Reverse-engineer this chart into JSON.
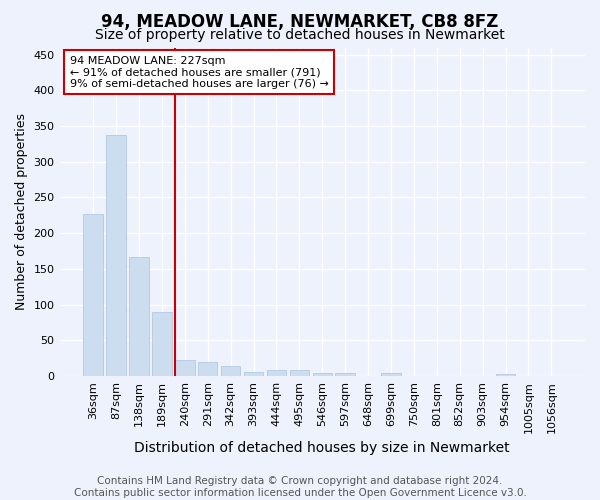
{
  "title1": "94, MEADOW LANE, NEWMARKET, CB8 8FZ",
  "title2": "Size of property relative to detached houses in Newmarket",
  "xlabel": "Distribution of detached houses by size in Newmarket",
  "ylabel": "Number of detached properties",
  "categories": [
    "36sqm",
    "87sqm",
    "138sqm",
    "189sqm",
    "240sqm",
    "291sqm",
    "342sqm",
    "393sqm",
    "444sqm",
    "495sqm",
    "546sqm",
    "597sqm",
    "648sqm",
    "699sqm",
    "750sqm",
    "801sqm",
    "852sqm",
    "903sqm",
    "954sqm",
    "1005sqm",
    "1056sqm"
  ],
  "values": [
    227,
    337,
    166,
    89,
    22,
    20,
    14,
    6,
    8,
    8,
    4,
    4,
    0,
    4,
    0,
    0,
    0,
    0,
    3,
    0,
    0
  ],
  "bar_color": "#ccddf0",
  "bar_edge_color": "#aac4e0",
  "vline_index": 4,
  "vline_color": "#cc0000",
  "annotation_line1": "94 MEADOW LANE: 227sqm",
  "annotation_line2": "← 91% of detached houses are smaller (791)",
  "annotation_line3": "9% of semi-detached houses are larger (76) →",
  "annotation_box_color": "#ffffff",
  "annotation_box_edge": "#cc0000",
  "ylim": [
    0,
    460
  ],
  "yticks": [
    0,
    50,
    100,
    150,
    200,
    250,
    300,
    350,
    400,
    450
  ],
  "footer": "Contains HM Land Registry data © Crown copyright and database right 2024.\nContains public sector information licensed under the Open Government Licence v3.0.",
  "bg_color": "#eef2fc",
  "plot_bg_color": "#eef2fc",
  "grid_color": "#ffffff",
  "title1_fontsize": 12,
  "title2_fontsize": 10,
  "xlabel_fontsize": 10,
  "ylabel_fontsize": 9,
  "tick_fontsize": 8,
  "footer_fontsize": 7.5
}
